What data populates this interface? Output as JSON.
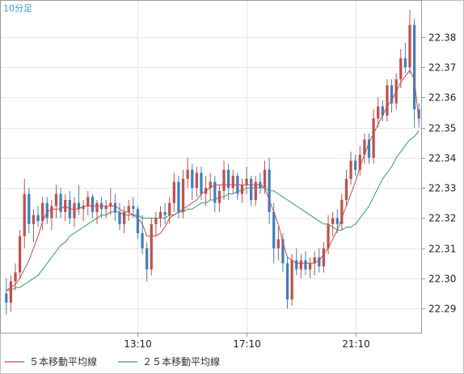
{
  "chart_data": {
    "type": "candlestick",
    "timeframe": "10分足",
    "y_ticks": [
      "22.29",
      "22.30",
      "22.31",
      "22.32",
      "22.33",
      "22.34",
      "22.35",
      "22.36",
      "22.37",
      "22.38"
    ],
    "ylim": [
      22.282,
      22.392
    ],
    "x_ticks": [
      {
        "label": "13:10",
        "bar_index": 29
      },
      {
        "label": "17:10",
        "bar_index": 53
      },
      {
        "label": "21:10",
        "bar_index": 77
      }
    ],
    "grid": true,
    "legend": [
      {
        "label": "５本移動平均線",
        "color": "#c0504d"
      },
      {
        "label": "２５本移動平均線",
        "color": "#2e9e6e"
      }
    ],
    "colors": {
      "up": "#c0504d",
      "down": "#3f7fbf",
      "ma5": "#c0504d",
      "ma25": "#2e9e6e",
      "frame": "#9a9a9a",
      "grid": "#e4e4e4"
    },
    "candles": [
      [
        22.295,
        22.3,
        22.288,
        22.292
      ],
      [
        22.292,
        22.301,
        22.289,
        22.299
      ],
      [
        22.299,
        22.305,
        22.296,
        22.302
      ],
      [
        22.302,
        22.316,
        22.3,
        22.314
      ],
      [
        22.314,
        22.333,
        22.31,
        22.328
      ],
      [
        22.328,
        22.33,
        22.315,
        22.318
      ],
      [
        22.318,
        22.323,
        22.312,
        22.321
      ],
      [
        22.321,
        22.324,
        22.317,
        22.319
      ],
      [
        22.319,
        22.327,
        22.316,
        22.325
      ],
      [
        22.325,
        22.327,
        22.318,
        22.32
      ],
      [
        22.32,
        22.326,
        22.316,
        22.324
      ],
      [
        22.324,
        22.331,
        22.32,
        22.328
      ],
      [
        22.328,
        22.33,
        22.32,
        22.322
      ],
      [
        22.322,
        22.328,
        22.319,
        22.326
      ],
      [
        22.326,
        22.329,
        22.318,
        22.32
      ],
      [
        22.32,
        22.327,
        22.317,
        22.325
      ],
      [
        22.325,
        22.331,
        22.321,
        22.323
      ],
      [
        22.323,
        22.326,
        22.319,
        22.324
      ],
      [
        22.324,
        22.329,
        22.321,
        22.327
      ],
      [
        22.327,
        22.328,
        22.32,
        22.322
      ],
      [
        22.322,
        22.326,
        22.318,
        22.325
      ],
      [
        22.325,
        22.327,
        22.32,
        22.323
      ],
      [
        22.323,
        22.326,
        22.32,
        22.324
      ],
      [
        22.324,
        22.33,
        22.321,
        22.325
      ],
      [
        22.325,
        22.328,
        22.319,
        22.322
      ],
      [
        22.322,
        22.325,
        22.316,
        22.318
      ],
      [
        22.318,
        22.324,
        22.315,
        22.322
      ],
      [
        22.322,
        22.326,
        22.319,
        22.324
      ],
      [
        22.324,
        22.327,
        22.32,
        22.323
      ],
      [
        22.323,
        22.324,
        22.313,
        22.315
      ],
      [
        22.315,
        22.321,
        22.308,
        22.31
      ],
      [
        22.31,
        22.312,
        22.299,
        22.303
      ],
      [
        22.303,
        22.32,
        22.301,
        22.318
      ],
      [
        22.318,
        22.322,
        22.314,
        22.32
      ],
      [
        22.32,
        22.324,
        22.317,
        22.322
      ],
      [
        22.322,
        22.325,
        22.318,
        22.321
      ],
      [
        22.321,
        22.327,
        22.318,
        22.325
      ],
      [
        22.325,
        22.335,
        22.322,
        22.332
      ],
      [
        22.332,
        22.334,
        22.32,
        22.322
      ],
      [
        22.322,
        22.336,
        22.32,
        22.333
      ],
      [
        22.333,
        22.34,
        22.33,
        22.336
      ],
      [
        22.336,
        22.338,
        22.326,
        22.33
      ],
      [
        22.33,
        22.337,
        22.327,
        22.335
      ],
      [
        22.335,
        22.337,
        22.326,
        22.328
      ],
      [
        22.328,
        22.334,
        22.324,
        22.33
      ],
      [
        22.33,
        22.335,
        22.326,
        22.332
      ],
      [
        22.332,
        22.334,
        22.322,
        22.325
      ],
      [
        22.325,
        22.331,
        22.322,
        22.329
      ],
      [
        22.329,
        22.339,
        22.326,
        22.336
      ],
      [
        22.336,
        22.338,
        22.326,
        22.33
      ],
      [
        22.33,
        22.336,
        22.328,
        22.334
      ],
      [
        22.334,
        22.335,
        22.326,
        22.328
      ],
      [
        22.328,
        22.333,
        22.325,
        22.331
      ],
      [
        22.331,
        22.337,
        22.328,
        22.333
      ],
      [
        22.333,
        22.334,
        22.324,
        22.326
      ],
      [
        22.326,
        22.334,
        22.324,
        22.332
      ],
      [
        22.332,
        22.335,
        22.328,
        22.33
      ],
      [
        22.33,
        22.339,
        22.328,
        22.336
      ],
      [
        22.336,
        22.34,
        22.318,
        22.322
      ],
      [
        22.322,
        22.325,
        22.305,
        22.31
      ],
      [
        22.31,
        22.317,
        22.306,
        22.313
      ],
      [
        22.313,
        22.315,
        22.302,
        22.305
      ],
      [
        22.305,
        22.307,
        22.29,
        22.293
      ],
      [
        22.293,
        22.308,
        22.291,
        22.306
      ],
      [
        22.306,
        22.31,
        22.301,
        22.303
      ],
      [
        22.303,
        22.308,
        22.3,
        22.306
      ],
      [
        22.306,
        22.309,
        22.301,
        22.303
      ],
      [
        22.303,
        22.307,
        22.3,
        22.305
      ],
      [
        22.305,
        22.309,
        22.301,
        22.307
      ],
      [
        22.307,
        22.31,
        22.302,
        22.304
      ],
      [
        22.304,
        22.312,
        22.302,
        22.31
      ],
      [
        22.31,
        22.321,
        22.308,
        22.318
      ],
      [
        22.318,
        22.322,
        22.314,
        22.32
      ],
      [
        22.32,
        22.323,
        22.315,
        22.318
      ],
      [
        22.318,
        22.328,
        22.316,
        22.326
      ],
      [
        22.326,
        22.336,
        22.324,
        22.333
      ],
      [
        22.333,
        22.342,
        22.331,
        22.339
      ],
      [
        22.339,
        22.341,
        22.334,
        22.336
      ],
      [
        22.336,
        22.344,
        22.334,
        22.341
      ],
      [
        22.341,
        22.348,
        22.338,
        22.346
      ],
      [
        22.346,
        22.348,
        22.338,
        22.34
      ],
      [
        22.34,
        22.356,
        22.338,
        22.353
      ],
      [
        22.353,
        22.36,
        22.35,
        22.357
      ],
      [
        22.357,
        22.359,
        22.352,
        22.354
      ],
      [
        22.354,
        22.366,
        22.352,
        22.364
      ],
      [
        22.364,
        22.366,
        22.355,
        22.358
      ],
      [
        22.358,
        22.368,
        22.356,
        22.366
      ],
      [
        22.366,
        22.376,
        22.363,
        22.373
      ],
      [
        22.373,
        22.378,
        22.368,
        22.37
      ],
      [
        22.37,
        22.389,
        22.368,
        22.384
      ],
      [
        22.384,
        22.386,
        22.35,
        22.356
      ],
      [
        22.356,
        22.358,
        22.35,
        22.353
      ]
    ],
    "ma5": [
      22.296,
      22.297,
      22.298,
      22.3,
      22.303,
      22.306,
      22.31,
      22.314,
      22.319,
      22.322,
      22.323,
      22.323,
      22.323,
      22.324,
      22.323,
      22.323,
      22.323,
      22.324,
      22.324,
      22.324,
      22.324,
      22.324,
      22.324,
      22.324,
      22.324,
      22.323,
      22.322,
      22.322,
      22.321,
      22.32,
      22.318,
      22.314,
      22.314,
      22.314,
      22.315,
      22.317,
      22.32,
      22.321,
      22.322,
      22.323,
      22.324,
      22.325,
      22.326,
      22.328,
      22.329,
      22.33,
      22.331,
      22.331,
      22.331,
      22.331,
      22.331,
      22.331,
      22.331,
      22.331,
      22.331,
      22.331,
      22.331,
      22.33,
      22.326,
      22.322,
      22.318,
      22.312,
      22.307,
      22.306,
      22.305,
      22.305,
      22.305,
      22.305,
      22.305,
      22.306,
      22.308,
      22.31,
      22.313,
      22.316,
      22.32,
      22.324,
      22.328,
      22.332,
      22.337,
      22.341,
      22.345,
      22.348,
      22.351,
      22.354,
      22.357,
      22.359,
      22.362,
      22.365,
      22.367,
      22.369,
      22.366,
      22.352
    ],
    "ma25": [
      22.296,
      22.296,
      22.297,
      22.297,
      22.298,
      22.299,
      22.3,
      22.301,
      22.303,
      22.305,
      22.307,
      22.309,
      22.311,
      22.312,
      22.314,
      22.315,
      22.316,
      22.317,
      22.318,
      22.319,
      22.32,
      22.321,
      22.321,
      22.322,
      22.322,
      22.322,
      22.321,
      22.321,
      22.321,
      22.321,
      22.32,
      22.32,
      22.32,
      22.32,
      22.32,
      22.32,
      22.321,
      22.321,
      22.322,
      22.322,
      22.323,
      22.323,
      22.324,
      22.325,
      22.325,
      22.326,
      22.326,
      22.327,
      22.327,
      22.328,
      22.328,
      22.329,
      22.329,
      22.33,
      22.33,
      22.33,
      22.33,
      22.33,
      22.329,
      22.329,
      22.328,
      22.327,
      22.326,
      22.325,
      22.324,
      22.323,
      22.322,
      22.321,
      22.32,
      22.319,
      22.318,
      22.318,
      22.317,
      22.316,
      22.316,
      22.317,
      22.317,
      22.318,
      22.32,
      22.322,
      22.324,
      22.327,
      22.33,
      22.333,
      22.335,
      22.337,
      22.34,
      22.342,
      22.344,
      22.346,
      22.347,
      22.349
    ]
  }
}
